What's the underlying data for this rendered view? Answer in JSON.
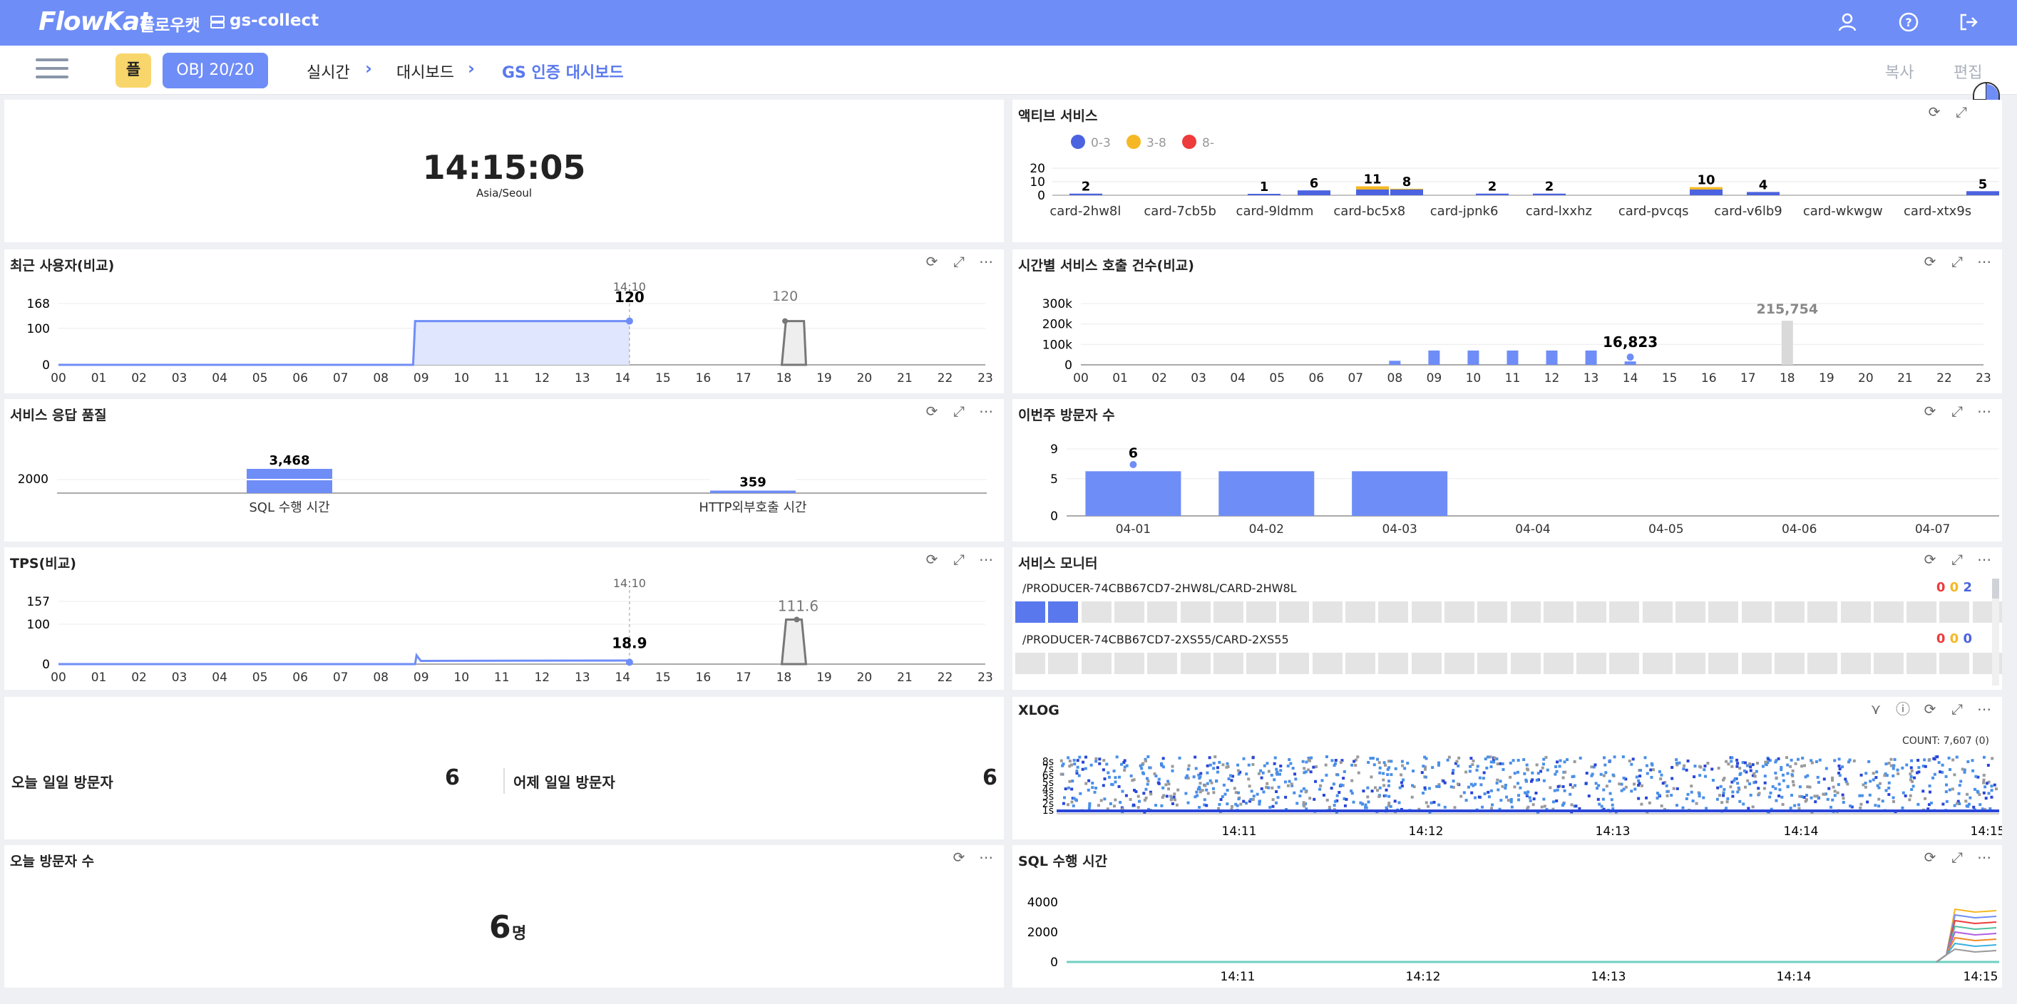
{
  "app": {
    "logo": "FlowKat",
    "brand_kr": "플로우캣",
    "project": "gs-collect"
  },
  "subbar": {
    "chip_yellow": "플",
    "chip_obj": "OBJ 20/20",
    "breadcrumb": [
      "실시간",
      "대시보드",
      "GS 인증 대시보드"
    ],
    "copy_label": "복사",
    "edit_label": "편집"
  },
  "clock": {
    "time": "14:15:05",
    "timezone": "Asia/Seoul"
  },
  "active_service": {
    "title": "액티브 서비스",
    "legend": [
      {
        "label": "0-3",
        "color": "#4b63e0"
      },
      {
        "label": "3-8",
        "color": "#f5b824"
      },
      {
        "label": "8-",
        "color": "#ee3b3b"
      }
    ]
  },
  "recent_users": {
    "title": "최근 사용자(비교)"
  },
  "hourly_calls": {
    "title": "시간별 서비스 호출 건수(비교)"
  },
  "service_quality": {
    "title": "서비스 응답 품질"
  },
  "weekly_visitors": {
    "title": "이번주 방문자 수"
  },
  "tps": {
    "title": "TPS(비교)"
  },
  "service_monitor": {
    "title": "서비스 모니터",
    "rows": [
      {
        "path": "/PRODUCER-74CBB67CD7-2HW8L/CARD-2HW8L",
        "c1": "0",
        "c2": "0",
        "c3": "2"
      },
      {
        "path": "/PRODUCER-74CBB67CD7-2XS55/CARD-2XS55",
        "c1": "0",
        "c2": "0",
        "c3": "0"
      }
    ]
  },
  "daily_visitors": {
    "today_label": "오늘 일일 방문자",
    "today_value": "6",
    "yesterday_label": "어제 일일 방문자",
    "yesterday_value": "6"
  },
  "xlog": {
    "title": "XLOG",
    "count_label": "COUNT: 7,607 (0)"
  },
  "today_visitors": {
    "title": "오늘 방문자 수",
    "value": "6",
    "unit": "명"
  },
  "sql_time": {
    "title": "SQL 수행 시간"
  },
  "chart_data": [
    {
      "id": "active_service",
      "type": "bar",
      "categories": [
        "card-2hw8l",
        "card-7cb5b",
        "card-9ldmm",
        "card-bc5x8",
        "card-jpnk6",
        "card-lxxhz",
        "card-pvcqs",
        "card-v6lb9",
        "card-wkwgw",
        "card-xtx9s"
      ],
      "series": [
        {
          "name": "0-3",
          "values": [
            2,
            0,
            1,
            6,
            0,
            2,
            0,
            0,
            0,
            5
          ]
        },
        {
          "name": "3-8",
          "values": [
            0,
            0,
            0,
            0,
            11,
            8,
            10,
            4,
            0,
            0
          ]
        },
        {
          "name": "8-",
          "values": [
            0,
            0,
            0,
            0,
            0,
            0,
            0,
            0,
            0,
            0
          ]
        }
      ],
      "bar_labels": [
        {
          "after": "card-2hw8l",
          "value": 2
        },
        {
          "after": "card-9ldmm",
          "value": 1
        },
        {
          "after": "card-bc5x8",
          "value": 6
        },
        {
          "after": "card-bc5x8b",
          "value": 11
        },
        {
          "after": "card-bc5x8c",
          "value": 8
        },
        {
          "after": "card-jpnk6",
          "value": 2
        },
        {
          "after": "card-lxxhz",
          "value": 2
        },
        {
          "after": "card-pvcqs",
          "value": 10
        },
        {
          "after": "card-v6lb9",
          "value": 4
        },
        {
          "after": "card-xtx9s",
          "value": 5
        }
      ],
      "ylim": [
        0,
        20
      ],
      "yticks": [
        0,
        10,
        20
      ]
    },
    {
      "id": "recent_users",
      "type": "area",
      "x_labels": [
        "00",
        "01",
        "02",
        "03",
        "04",
        "05",
        "06",
        "07",
        "08",
        "09",
        "10",
        "11",
        "12",
        "13",
        "14",
        "15",
        "16",
        "17",
        "18",
        "19",
        "20",
        "21",
        "22",
        "23"
      ],
      "ytick_labels": [
        "0",
        "100",
        "168"
      ],
      "ylim": [
        0,
        168
      ],
      "today": {
        "segments": [
          [
            0,
            0
          ],
          [
            8.8,
            0
          ],
          [
            8.85,
            120
          ],
          [
            14.17,
            120
          ]
        ],
        "last_value": 120,
        "last_time": "14:10"
      },
      "yesterday": {
        "segments": [
          [
            17.95,
            0
          ],
          [
            18.05,
            120
          ],
          [
            18.5,
            120
          ],
          [
            18.55,
            0
          ]
        ],
        "peak_value": 120
      }
    },
    {
      "id": "hourly_calls",
      "type": "bar",
      "x_labels": [
        "00",
        "01",
        "02",
        "03",
        "04",
        "05",
        "06",
        "07",
        "08",
        "09",
        "10",
        "11",
        "12",
        "13",
        "14",
        "15",
        "16",
        "17",
        "18",
        "19",
        "20",
        "21",
        "22",
        "23"
      ],
      "ytick_labels": [
        "0",
        "100k",
        "200k",
        "300k"
      ],
      "ylim": [
        0,
        330000
      ],
      "today": [
        0,
        0,
        0,
        0,
        0,
        0,
        0,
        0,
        20000,
        70000,
        70000,
        70000,
        70000,
        70000,
        16823,
        0,
        0,
        0,
        0,
        0,
        0,
        0,
        0,
        0
      ],
      "today_label": "16,823",
      "compare": [
        0,
        0,
        0,
        0,
        0,
        0,
        0,
        0,
        0,
        0,
        0,
        0,
        0,
        0,
        0,
        0,
        0,
        0,
        215754,
        0,
        0,
        0,
        0,
        0
      ],
      "compare_label": "215,754"
    },
    {
      "id": "service_quality",
      "type": "bar",
      "categories": [
        "SQL 수행 시간",
        "HTTP외부호출 시간"
      ],
      "values": [
        3468,
        359
      ],
      "value_labels": [
        "3,468",
        "359"
      ],
      "ytick_labels": [
        "2000"
      ]
    },
    {
      "id": "weekly_visitors",
      "type": "bar",
      "categories": [
        "04-01",
        "04-02",
        "04-03",
        "04-04",
        "04-05",
        "04-06",
        "04-07"
      ],
      "values": [
        6,
        6,
        6,
        0,
        0,
        0,
        0
      ],
      "peak_label": "6",
      "ytick_labels": [
        "0",
        "5",
        "9"
      ],
      "ylim": [
        0,
        9
      ]
    },
    {
      "id": "tps",
      "type": "line",
      "x_labels": [
        "00",
        "01",
        "02",
        "03",
        "04",
        "05",
        "06",
        "07",
        "08",
        "09",
        "10",
        "11",
        "12",
        "13",
        "14",
        "15",
        "16",
        "17",
        "18",
        "19",
        "20",
        "21",
        "22",
        "23"
      ],
      "ytick_labels": [
        "0",
        "100",
        "157"
      ],
      "ylim": [
        0,
        157
      ],
      "today_value": "18.9",
      "today_time": "14:10",
      "compare_value": "111.6"
    },
    {
      "id": "xlog",
      "type": "scatter",
      "ytick_labels": [
        "1s",
        "2s",
        "3s",
        "4s",
        "5s",
        "6s",
        "7s",
        "8s"
      ],
      "x_labels": [
        "14:11",
        "14:12",
        "14:13",
        "14:14",
        "14:15"
      ]
    },
    {
      "id": "sql_time",
      "type": "line",
      "ytick_labels": [
        "0",
        "2000",
        "4000"
      ],
      "x_labels": [
        "14:11",
        "14:12",
        "14:13",
        "14:14",
        "14:15"
      ]
    }
  ]
}
